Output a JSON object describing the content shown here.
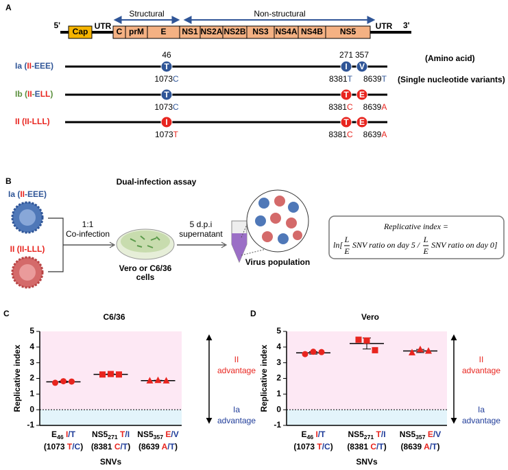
{
  "panel_a": {
    "label": "A",
    "five_prime": "5'",
    "three_prime": "3'",
    "utr_left": "UTR",
    "utr_right": "UTR",
    "cap": "Cap",
    "structural": "Structural",
    "non_structural": "Non-structural",
    "genes": [
      "C",
      "prM",
      "E",
      "NS1",
      "NS2A",
      "NS2B",
      "NS3",
      "NS4A",
      "NS4B",
      "NS5"
    ],
    "aa_positions": [
      "46",
      "271",
      "357"
    ],
    "amino_acid_note": "(Amino acid)",
    "snv_note": "(Single nucleotide variants)",
    "rows": [
      {
        "label": [
          {
            "text": "Ia (",
            "color": "#2f5597"
          },
          {
            "text": "II",
            "color": "#e8251f"
          },
          {
            "text": "-EEE)",
            "color": "#2f5597"
          }
        ],
        "residues": [
          {
            "text": "T",
            "color": "#2f5597"
          },
          {
            "text": "I",
            "color": "#2f5597"
          },
          {
            "text": "V",
            "color": "#2f5597"
          }
        ],
        "snvs": [
          {
            "pos": "1073",
            "base": "C",
            "color": "#2f5597"
          },
          {
            "pos": "8381",
            "base": "T",
            "color": "#2f5597"
          },
          {
            "pos": "8639",
            "base": "T",
            "color": "#2f5597"
          }
        ]
      },
      {
        "label": [
          {
            "text": "Ib (",
            "color": "#5a8f3c"
          },
          {
            "text": "II",
            "color": "#e8251f"
          },
          {
            "text": "-",
            "color": "#5a8f3c"
          },
          {
            "text": "E",
            "color": "#2f5597"
          },
          {
            "text": "LL",
            "color": "#e8251f"
          },
          {
            "text": ")",
            "color": "#5a8f3c"
          }
        ],
        "residues": [
          {
            "text": "T",
            "color": "#2f5597"
          },
          {
            "text": "T",
            "color": "#e8251f"
          },
          {
            "text": "E",
            "color": "#e8251f"
          }
        ],
        "snvs": [
          {
            "pos": "1073",
            "base": "C",
            "color": "#2f5597"
          },
          {
            "pos": "8381",
            "base": "C",
            "color": "#e8251f"
          },
          {
            "pos": "8639",
            "base": "A",
            "color": "#e8251f"
          }
        ]
      },
      {
        "label": [
          {
            "text": "II (II-LLL)",
            "color": "#e8251f"
          }
        ],
        "residues": [
          {
            "text": "I",
            "color": "#e8251f"
          },
          {
            "text": "T",
            "color": "#e8251f"
          },
          {
            "text": "E",
            "color": "#e8251f"
          }
        ],
        "snvs": [
          {
            "pos": "1073",
            "base": "T",
            "color": "#e8251f"
          },
          {
            "pos": "8381",
            "base": "C",
            "color": "#e8251f"
          },
          {
            "pos": "8639",
            "base": "A",
            "color": "#e8251f"
          }
        ]
      }
    ]
  },
  "panel_b": {
    "label": "B",
    "title": "Dual-infection assay",
    "virus_a": [
      {
        "text": "Ia (",
        "color": "#2f5597"
      },
      {
        "text": "II",
        "color": "#e8251f"
      },
      {
        "text": "-EEE)",
        "color": "#2f5597"
      }
    ],
    "virus_b": [
      {
        "text": "II (II-LLL)",
        "color": "#e8251f"
      }
    ],
    "ratio": "1:1",
    "coinfection": "Co-infection",
    "cells": [
      "Vero or C6/36",
      "cells"
    ],
    "dpi": "5 d.p.i",
    "supernatant": "supernatant",
    "population": "Virus population",
    "formula": {
      "lhs": "Replicative index =",
      "open": "ln[",
      "fractions": [
        {
          "num": "L",
          "den": "E",
          "text": "SNV ratio on day 5 /"
        },
        {
          "num": "L",
          "den": "E",
          "text": "SNV ratio on day 0]"
        }
      ]
    }
  },
  "chart_data": [
    {
      "type": "dot",
      "panel": "C",
      "title": "C6/36",
      "y_label": "Replicative index",
      "x_label": "SNVs",
      "ylim": [
        -1,
        5
      ],
      "yticks": [
        -1,
        0,
        1,
        2,
        3,
        4,
        5
      ],
      "color": "#e8251f",
      "markers": [
        "circle",
        "square",
        "triangle"
      ],
      "categories": [
        {
          "line1": [
            {
              "text": "E"
            },
            {
              "text": "46",
              "sub": true
            },
            {
              "text": " I",
              "color": "#e8251f"
            },
            {
              "text": "/T",
              "color": "#1f3c99"
            }
          ],
          "line2": [
            {
              "text": "(1073 "
            },
            {
              "text": "T",
              "color": "#e8251f"
            },
            {
              "text": "/C",
              "color": "#1f3c99"
            },
            {
              "text": ")"
            }
          ]
        },
        {
          "line1": [
            {
              "text": "NS5"
            },
            {
              "text": "271",
              "sub": true
            },
            {
              "text": " T",
              "color": "#e8251f"
            },
            {
              "text": "/I",
              "color": "#1f3c99"
            }
          ],
          "line2": [
            {
              "text": "(8381 "
            },
            {
              "text": "C",
              "color": "#e8251f"
            },
            {
              "text": "/T",
              "color": "#1f3c99"
            },
            {
              "text": ")"
            }
          ]
        },
        {
          "line1": [
            {
              "text": "NS5"
            },
            {
              "text": "357",
              "sub": true
            },
            {
              "text": " E",
              "color": "#e8251f"
            },
            {
              "text": "/V",
              "color": "#1f3c99"
            }
          ],
          "line2": [
            {
              "text": "(8639 "
            },
            {
              "text": "A",
              "color": "#e8251f"
            },
            {
              "text": "/T",
              "color": "#1f3c99"
            },
            {
              "text": ")"
            }
          ]
        }
      ],
      "points": [
        [
          1.72,
          1.82,
          1.8
        ],
        [
          2.25,
          2.28,
          2.25
        ],
        [
          1.85,
          1.88,
          1.85
        ]
      ],
      "mean": [
        1.78,
        2.26,
        1.86
      ],
      "sd": [
        0.05,
        0.02,
        0.02
      ],
      "advantage_up": [
        "II",
        "advantage"
      ],
      "advantage_down": [
        "Ia",
        "advantage"
      ]
    },
    {
      "type": "dot",
      "panel": "D",
      "title": "Vero",
      "y_label": "Replicative index",
      "x_label": "SNVs",
      "ylim": [
        -1,
        5
      ],
      "yticks": [
        -1,
        0,
        1,
        2,
        3,
        4,
        5
      ],
      "color": "#e8251f",
      "markers": [
        "circle",
        "square",
        "triangle"
      ],
      "categories": [
        {
          "line1": [
            {
              "text": "E"
            },
            {
              "text": "46",
              "sub": true
            },
            {
              "text": " I",
              "color": "#e8251f"
            },
            {
              "text": "/T",
              "color": "#1f3c99"
            }
          ],
          "line2": [
            {
              "text": "(1073 "
            },
            {
              "text": "T",
              "color": "#e8251f"
            },
            {
              "text": "/C",
              "color": "#1f3c99"
            },
            {
              "text": ")"
            }
          ]
        },
        {
          "line1": [
            {
              "text": "NS5"
            },
            {
              "text": "271",
              "sub": true
            },
            {
              "text": " T",
              "color": "#e8251f"
            },
            {
              "text": "/I",
              "color": "#1f3c99"
            }
          ],
          "line2": [
            {
              "text": "(8381 "
            },
            {
              "text": "C",
              "color": "#e8251f"
            },
            {
              "text": "/T",
              "color": "#1f3c99"
            },
            {
              "text": ")"
            }
          ]
        },
        {
          "line1": [
            {
              "text": "NS5"
            },
            {
              "text": "357",
              "sub": true
            },
            {
              "text": " E",
              "color": "#e8251f"
            },
            {
              "text": "/V",
              "color": "#1f3c99"
            }
          ],
          "line2": [
            {
              "text": "(8639 "
            },
            {
              "text": "A",
              "color": "#e8251f"
            },
            {
              "text": "/T",
              "color": "#1f3c99"
            },
            {
              "text": ")"
            }
          ]
        }
      ],
      "points": [
        [
          3.55,
          3.7,
          3.68
        ],
        [
          4.47,
          4.42,
          3.8
        ],
        [
          3.65,
          3.85,
          3.75
        ]
      ],
      "mean": [
        3.63,
        4.23,
        3.75
      ],
      "sd": [
        0.08,
        0.35,
        0.1
      ],
      "advantage_up": [
        "II",
        "advantage"
      ],
      "advantage_down": [
        "Ia",
        "advantage"
      ]
    }
  ]
}
